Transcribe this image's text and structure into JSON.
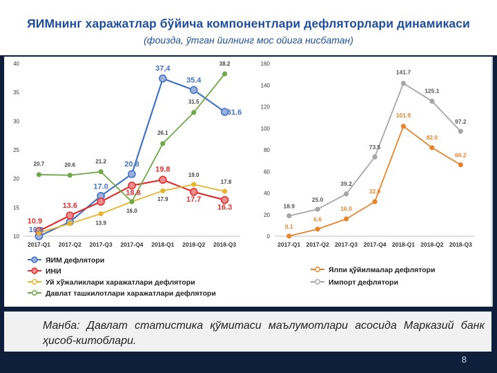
{
  "slide": {
    "title": "ЯИМнинг харажатлар бўйича компонентлари дефляторлари динамикаси",
    "subtitle": "(фоизда, ўтган йилнинг мос ойига нисбатан)",
    "source": "Манба: Давлат статистика қўмитаси маълумотлари асосида Марказий банк ҳисоб-китоблари.",
    "page_number": "8"
  },
  "chart_data": [
    {
      "type": "line",
      "categories": [
        "2017-Q1",
        "2017-Q2",
        "2017-Q3",
        "2017-Q4",
        "2018-Q1",
        "2018-Q2",
        "2018-Q3"
      ],
      "ylim": [
        10,
        40
      ],
      "yticks": [
        10,
        15,
        20,
        25,
        30,
        35,
        40
      ],
      "series": [
        {
          "name": "ЯИМ дефлятори",
          "color": "#4472c4",
          "marker": "large",
          "values": [
            10.0,
            12.5,
            17.0,
            20.8,
            37.4,
            35.4,
            31.6
          ],
          "labels": [
            "10.0",
            "",
            "17.0",
            "20.8",
            "37,4",
            "35.4",
            "31.6"
          ]
        },
        {
          "name": "ИНИ",
          "color": "#e03030",
          "marker": "large",
          "values": [
            10.9,
            13.6,
            16.0,
            18.8,
            19.8,
            17.7,
            16.3
          ],
          "labels": [
            "10.9",
            "13.6",
            "",
            "18.8",
            "19.8",
            "17.7",
            "16.3"
          ]
        },
        {
          "name": "Уй хўжаликлари харажатлари дефлятори",
          "color": "#e7b42c",
          "marker": "small",
          "values": [
            10.6,
            12.2,
            13.9,
            16.0,
            17.9,
            19.0,
            17.8
          ],
          "labels": [
            "",
            "",
            "13.9",
            "",
            "17.9",
            "19.0",
            "17.8"
          ]
        },
        {
          "name": "Давлат ташкилотлари харажатлари дефлятори",
          "color": "#70a74a",
          "marker": "small",
          "values": [
            20.7,
            20.6,
            21.2,
            16.0,
            26.1,
            31.5,
            38.2
          ],
          "labels": [
            "20.7",
            "20.6",
            "21.2",
            "16.0",
            "26.1",
            "31.5",
            "38.2"
          ]
        }
      ]
    },
    {
      "type": "line",
      "categories": [
        "2017-Q1",
        "2017-Q2",
        "2017-Q3",
        "2017-Q4",
        "2018-Q1",
        "2018-Q2",
        "2018-Q3"
      ],
      "ylim": [
        0,
        160
      ],
      "yticks": [
        0,
        20,
        40,
        60,
        80,
        100,
        120,
        140,
        160
      ],
      "series": [
        {
          "name": "Ялпи қўйилмалар дефлятори",
          "color": "#e8842c",
          "marker": "small",
          "values": [
            0.1,
            6.6,
            16.0,
            32.0,
            101.9,
            82.0,
            66.2
          ],
          "labels": [
            "0.1",
            "6.6",
            "16.0",
            "32.0",
            "101.9",
            "82.0",
            "66.2"
          ]
        },
        {
          "name": "Импорт дефлятори",
          "color": "#a6a6a6",
          "marker": "small",
          "values": [
            18.9,
            25.0,
            39.2,
            73.5,
            141.7,
            125.1,
            97.2
          ],
          "labels": [
            "18.9",
            "25.0",
            "39.2",
            "73.5",
            "141.7",
            "125.1",
            "97.2"
          ]
        }
      ]
    }
  ]
}
